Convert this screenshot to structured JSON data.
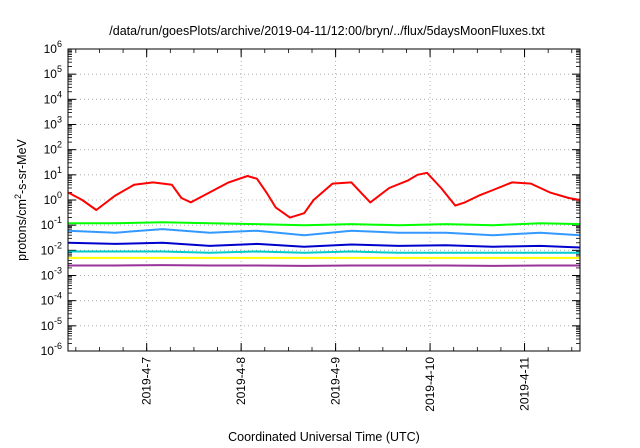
{
  "chart_data": {
    "type": "line",
    "title": "/data/run/goesPlots/archive/2019-04-11/12:00/bryn/../flux/5daysMoonFluxes.txt",
    "xlabel": "Coordinated Universal Time (UTC)",
    "ylabel_parts": [
      "protons/cm",
      "2",
      "-s-sr-MeV"
    ],
    "y_scale": "log",
    "ylim_exponents": [
      -6,
      6
    ],
    "y_tick_labels": [
      {
        "base": "10",
        "exp": "6"
      },
      {
        "base": "10",
        "exp": "5"
      },
      {
        "base": "10",
        "exp": "4"
      },
      {
        "base": "10",
        "exp": "3"
      },
      {
        "base": "10",
        "exp": "2"
      },
      {
        "base": "10",
        "exp": "1"
      },
      {
        "base": "10",
        "exp": "0"
      },
      {
        "base": "10",
        "exp": "-1"
      },
      {
        "base": "10",
        "exp": "-2"
      },
      {
        "base": "10",
        "exp": "-3"
      },
      {
        "base": "10",
        "exp": "-4"
      },
      {
        "base": "10",
        "exp": "-5"
      },
      {
        "base": "10",
        "exp": "-6"
      }
    ],
    "x_range_days": [
      "2019-04-06 04:00",
      "2019-04-11 14:00"
    ],
    "x_tick_labels": [
      "2019-4-7",
      "2019-4-8",
      "2019-4-9",
      "2019-4-10",
      "2019-4-11"
    ],
    "grid": true,
    "series": [
      {
        "color": "#ff0000",
        "x": [
          0.0,
          0.15,
          0.3,
          0.5,
          0.7,
          0.9,
          1.1,
          1.2,
          1.3,
          1.5,
          1.7,
          1.9,
          2.0,
          2.1,
          2.2,
          2.35,
          2.5,
          2.6,
          2.8,
          3.0,
          3.1,
          3.2,
          3.4,
          3.6,
          3.7,
          3.8,
          3.95,
          4.1,
          4.2,
          4.35,
          4.5,
          4.7,
          4.9,
          5.1,
          5.3,
          5.42
        ],
        "y": [
          2.0,
          1.0,
          0.4,
          1.5,
          4.0,
          5.0,
          4.0,
          1.2,
          0.8,
          2.0,
          5.0,
          9.0,
          7.0,
          2.0,
          0.5,
          0.2,
          0.3,
          1.0,
          4.5,
          5.0,
          2.0,
          0.8,
          3.0,
          6.0,
          10.0,
          12.0,
          3.0,
          0.6,
          0.8,
          1.5,
          2.5,
          5.0,
          4.5,
          2.0,
          1.2,
          1.0
        ]
      },
      {
        "color": "#00ff00",
        "x": [
          0.0,
          0.5,
          1.0,
          1.5,
          2.0,
          2.5,
          3.0,
          3.5,
          4.0,
          4.5,
          5.0,
          5.42
        ],
        "y": [
          0.12,
          0.12,
          0.13,
          0.12,
          0.11,
          0.1,
          0.11,
          0.1,
          0.11,
          0.1,
          0.12,
          0.11
        ]
      },
      {
        "color": "#3399ff",
        "x": [
          0.0,
          0.5,
          1.0,
          1.5,
          2.0,
          2.5,
          3.0,
          3.5,
          4.0,
          4.5,
          5.0,
          5.42
        ],
        "y": [
          0.06,
          0.05,
          0.07,
          0.05,
          0.06,
          0.04,
          0.06,
          0.05,
          0.05,
          0.04,
          0.05,
          0.04
        ]
      },
      {
        "color": "#0000cc",
        "x": [
          0.0,
          0.5,
          1.0,
          1.5,
          2.0,
          2.5,
          3.0,
          3.5,
          4.0,
          4.5,
          5.0,
          5.42
        ],
        "y": [
          0.02,
          0.018,
          0.02,
          0.015,
          0.018,
          0.014,
          0.017,
          0.015,
          0.016,
          0.014,
          0.015,
          0.013
        ]
      },
      {
        "color": "#00cccc",
        "x": [
          0.0,
          0.5,
          1.0,
          1.5,
          2.0,
          2.5,
          3.0,
          3.5,
          4.0,
          4.5,
          5.0,
          5.42
        ],
        "y": [
          0.009,
          0.009,
          0.009,
          0.008,
          0.009,
          0.008,
          0.009,
          0.008,
          0.008,
          0.008,
          0.008,
          0.008
        ]
      },
      {
        "color": "#ffff00",
        "x": [
          0.0,
          1.0,
          2.0,
          3.0,
          4.0,
          5.0,
          5.42
        ],
        "y": [
          0.005,
          0.005,
          0.005,
          0.005,
          0.005,
          0.005,
          0.005
        ]
      },
      {
        "color": "#993399",
        "x": [
          0.0,
          0.5,
          1.0,
          1.5,
          2.0,
          2.5,
          3.0,
          3.5,
          4.0,
          4.5,
          5.0,
          5.42
        ],
        "y": [
          0.0025,
          0.0025,
          0.0026,
          0.0025,
          0.0025,
          0.0024,
          0.0025,
          0.0025,
          0.0025,
          0.0024,
          0.0025,
          0.0025
        ]
      }
    ]
  }
}
